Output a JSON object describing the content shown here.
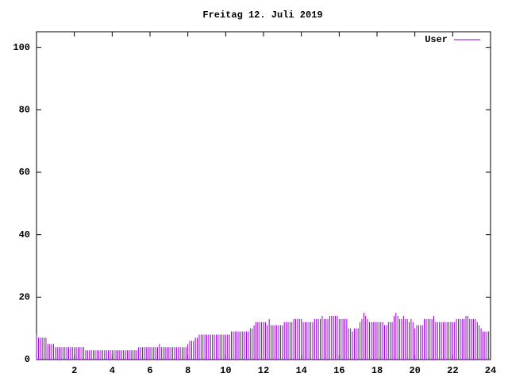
{
  "chart_data": {
    "type": "impulse",
    "title": "Freitag 12. Juli 2019",
    "x": [
      0.0,
      0.1,
      0.2,
      0.3,
      0.4,
      0.5,
      0.6,
      0.7,
      0.8,
      0.9,
      1.0,
      1.1,
      1.2,
      1.3,
      1.4,
      1.5,
      1.6,
      1.7,
      1.8,
      1.9,
      2.0,
      2.1,
      2.2,
      2.3,
      2.4,
      2.5,
      2.6,
      2.7,
      2.8,
      2.9,
      3.0,
      3.1,
      3.2,
      3.3,
      3.4,
      3.5,
      3.6,
      3.7,
      3.8,
      3.9,
      4.0,
      4.1,
      4.2,
      4.3,
      4.4,
      4.5,
      4.6,
      4.7,
      4.8,
      4.9,
      5.0,
      5.1,
      5.2,
      5.3,
      5.4,
      5.5,
      5.6,
      5.7,
      5.8,
      5.9,
      6.0,
      6.1,
      6.2,
      6.3,
      6.4,
      6.5,
      6.6,
      6.7,
      6.8,
      6.9,
      7.0,
      7.1,
      7.2,
      7.3,
      7.4,
      7.5,
      7.6,
      7.7,
      7.8,
      7.9,
      8.0,
      8.1,
      8.2,
      8.3,
      8.4,
      8.5,
      8.6,
      8.7,
      8.8,
      8.9,
      9.0,
      9.1,
      9.2,
      9.3,
      9.4,
      9.5,
      9.6,
      9.7,
      9.8,
      9.9,
      10.0,
      10.1,
      10.2,
      10.3,
      10.4,
      10.5,
      10.6,
      10.7,
      10.8,
      10.9,
      11.0,
      11.1,
      11.2,
      11.3,
      11.4,
      11.5,
      11.6,
      11.7,
      11.8,
      11.9,
      12.0,
      12.1,
      12.2,
      12.3,
      12.4,
      12.5,
      12.6,
      12.7,
      12.8,
      12.9,
      13.0,
      13.1,
      13.2,
      13.3,
      13.4,
      13.5,
      13.6,
      13.7,
      13.8,
      13.9,
      14.0,
      14.1,
      14.2,
      14.3,
      14.4,
      14.5,
      14.6,
      14.7,
      14.8,
      14.9,
      15.0,
      15.1,
      15.2,
      15.3,
      15.4,
      15.5,
      15.6,
      15.7,
      15.8,
      15.9,
      16.0,
      16.1,
      16.2,
      16.3,
      16.4,
      16.5,
      16.6,
      16.7,
      16.8,
      16.9,
      17.0,
      17.1,
      17.2,
      17.3,
      17.4,
      17.5,
      17.6,
      17.7,
      17.8,
      17.9,
      18.0,
      18.1,
      18.2,
      18.3,
      18.4,
      18.5,
      18.6,
      18.7,
      18.8,
      18.9,
      19.0,
      19.1,
      19.2,
      19.3,
      19.4,
      19.5,
      19.6,
      19.7,
      19.8,
      19.9,
      20.0,
      20.1,
      20.2,
      20.3,
      20.4,
      20.5,
      20.6,
      20.7,
      20.8,
      20.9,
      21.0,
      21.1,
      21.2,
      21.3,
      21.4,
      21.5,
      21.6,
      21.7,
      21.8,
      21.9,
      22.0,
      22.1,
      22.2,
      22.3,
      22.4,
      22.5,
      22.6,
      22.7,
      22.8,
      22.9,
      23.0,
      23.1,
      23.2,
      23.3,
      23.4,
      23.5,
      23.6,
      23.7,
      23.8,
      23.9
    ],
    "series": [
      {
        "name": "User",
        "color": "#9400d3",
        "values": [
          8,
          7,
          7,
          7,
          7,
          7,
          5,
          5,
          5,
          5,
          4,
          4,
          4,
          4,
          4,
          4,
          4,
          4,
          4,
          4,
          4,
          4,
          4,
          4,
          4,
          4,
          3,
          3,
          3,
          3,
          3,
          3,
          3,
          3,
          3,
          3,
          3,
          3,
          3,
          3,
          3,
          3,
          3,
          3,
          3,
          3,
          3,
          3,
          3,
          3,
          3,
          3,
          3,
          3,
          4,
          4,
          4,
          4,
          4,
          4,
          4,
          4,
          4,
          4,
          4,
          5,
          4,
          4,
          4,
          4,
          4,
          4,
          4,
          4,
          4,
          4,
          4,
          4,
          4,
          4,
          5,
          6,
          6,
          6,
          7,
          7,
          8,
          8,
          8,
          8,
          8,
          8,
          8,
          8,
          8,
          8,
          8,
          8,
          8,
          8,
          8,
          8,
          8,
          9,
          9,
          9,
          9,
          9,
          9,
          9,
          9,
          9,
          9,
          10,
          10,
          11,
          12,
          12,
          12,
          12,
          12,
          12,
          11,
          13,
          11,
          11,
          11,
          11,
          11,
          11,
          11,
          12,
          12,
          12,
          12,
          12,
          13,
          13,
          13,
          13,
          13,
          12,
          12,
          12,
          12,
          12,
          12,
          13,
          13,
          13,
          13,
          14,
          13,
          13,
          13,
          14,
          14,
          14,
          14,
          14,
          13,
          13,
          13,
          13,
          13,
          10,
          10,
          9,
          10,
          10,
          10,
          12,
          13,
          15,
          14,
          13,
          12,
          12,
          12,
          12,
          12,
          12,
          12,
          12,
          11,
          11,
          12,
          12,
          12,
          14,
          15,
          14,
          13,
          13,
          14,
          13,
          13,
          12,
          13,
          12,
          10,
          11,
          11,
          11,
          11,
          13,
          13,
          13,
          13,
          13,
          14,
          12,
          12,
          12,
          12,
          12,
          12,
          12,
          12,
          12,
          12,
          12,
          13,
          13,
          13,
          13,
          13,
          14,
          14,
          13,
          13,
          13,
          13,
          12,
          11,
          10,
          9,
          9,
          9,
          9
        ]
      }
    ],
    "xlim": [
      0,
      24
    ],
    "xticks": [
      2,
      4,
      6,
      8,
      10,
      12,
      14,
      16,
      18,
      20,
      22,
      24
    ],
    "ylim": [
      0,
      105
    ],
    "yticks": [
      0,
      20,
      40,
      60,
      80,
      100
    ]
  }
}
